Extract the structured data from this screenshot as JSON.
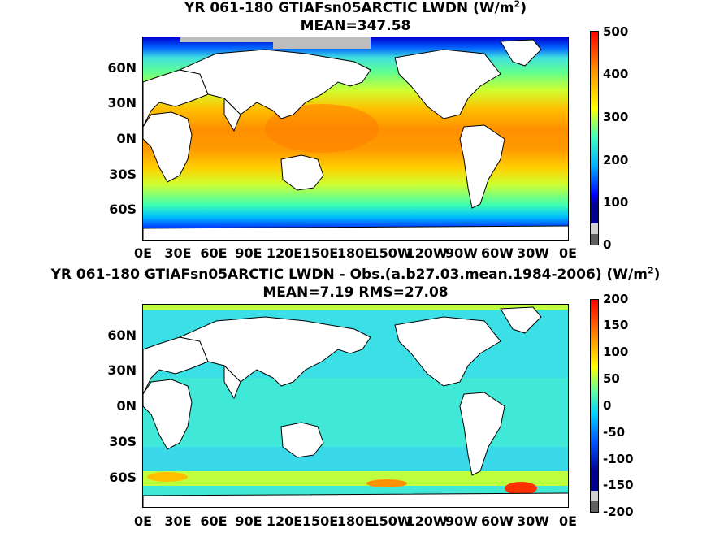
{
  "panels": [
    {
      "title_line1": "YR 061-180 GTIAFsn05ARCTIC LWDN (W/m",
      "title_sup": "2",
      "title_close": ")",
      "title_line2": "MEAN=347.58",
      "lat_labels": [
        "60N",
        "30N",
        "0N",
        "30S",
        "60S"
      ],
      "lon_labels": [
        "0E",
        "30E",
        "60E",
        "90E",
        "120E",
        "150E",
        "180E",
        "150W",
        "120W",
        "90W",
        "60W",
        "30W",
        "0E"
      ],
      "colorbar_ticks": [
        "500",
        "400",
        "300",
        "200",
        "100",
        "0"
      ],
      "colorbar_range": [
        0,
        500
      ],
      "field": "absolute"
    },
    {
      "title_line1": "YR 061-180 GTIAFsn05ARCTIC LWDN - Obs.(a.b27.03.mean.1984-2006) (W/m",
      "title_sup": "2",
      "title_close": ")",
      "title_line2": "MEAN=7.19 RMS=27.08",
      "lat_labels": [
        "60N",
        "30N",
        "0N",
        "30S",
        "60S"
      ],
      "lon_labels": [
        "0E",
        "30E",
        "60E",
        "90E",
        "120E",
        "150E",
        "180E",
        "150W",
        "120W",
        "90W",
        "60W",
        "30W",
        "0E"
      ],
      "colorbar_ticks": [
        "200",
        "150",
        "100",
        "50",
        "0",
        "-50",
        "-100",
        "-150",
        "-200"
      ],
      "colorbar_range": [
        -200,
        200
      ],
      "field": "difference"
    }
  ],
  "colors": {
    "land": "#ffffff",
    "coast": "#000000",
    "missing": "#bdbdbd",
    "colormap": [
      "#000090",
      "#0000ff",
      "#0070ff",
      "#00e0ff",
      "#60ffa0",
      "#c0ff40",
      "#ffff00",
      "#ffb000",
      "#ff6000",
      "#ff0000",
      "#900000"
    ]
  }
}
